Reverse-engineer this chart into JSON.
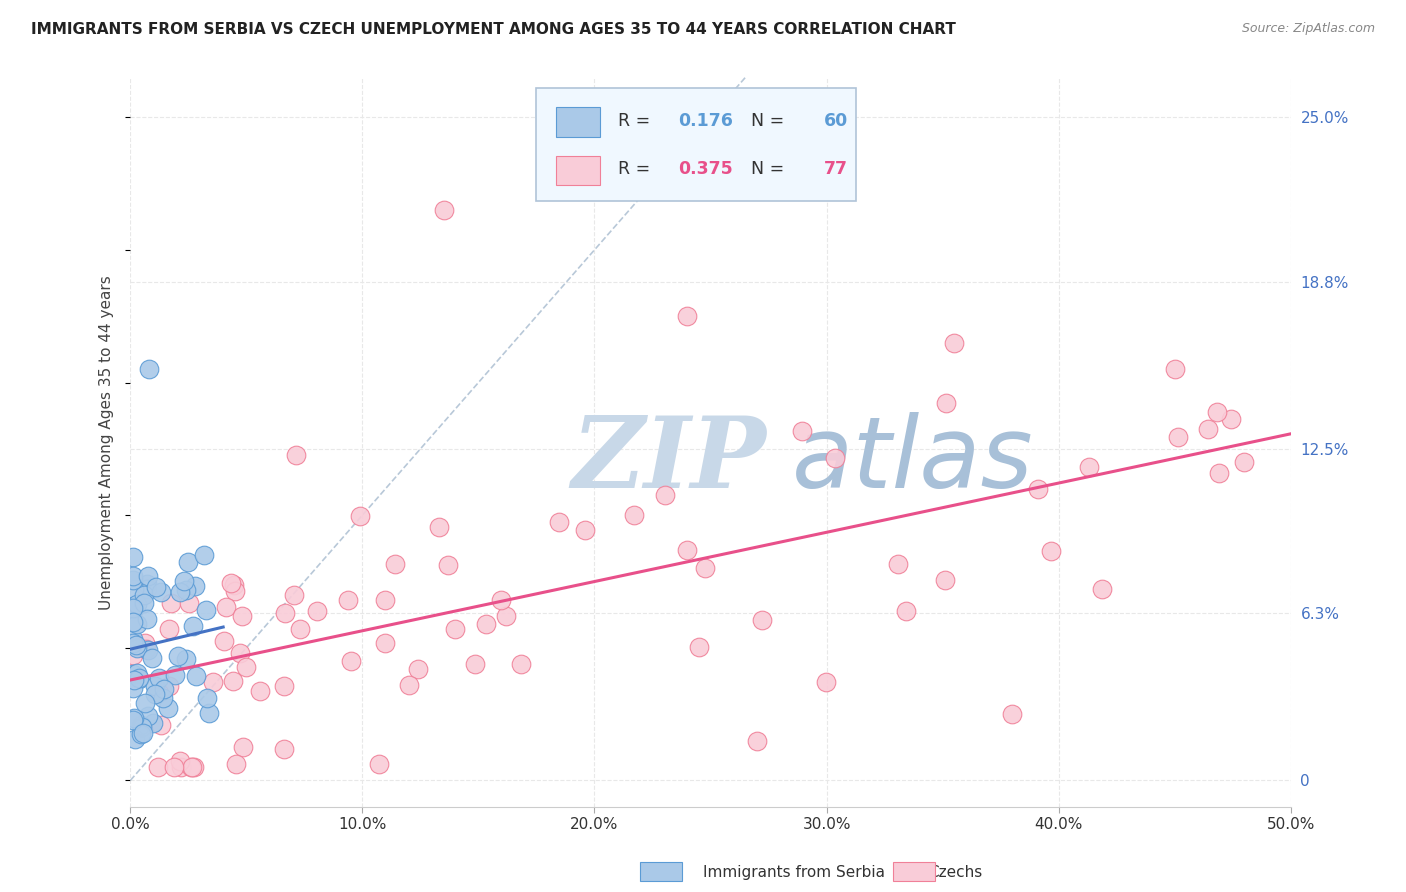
{
  "title": "IMMIGRANTS FROM SERBIA VS CZECH UNEMPLOYMENT AMONG AGES 35 TO 44 YEARS CORRELATION CHART",
  "source": "Source: ZipAtlas.com",
  "ylabel": "Unemployment Among Ages 35 to 44 years",
  "xlim": [
    0.0,
    0.5
  ],
  "ylim": [
    -0.01,
    0.265
  ],
  "xticks": [
    0.0,
    0.1,
    0.2,
    0.3,
    0.4,
    0.5
  ],
  "xticklabels": [
    "0.0%",
    "10.0%",
    "20.0%",
    "30.0%",
    "40.0%",
    "50.0%"
  ],
  "ytick_positions": [
    0.0,
    0.063,
    0.125,
    0.188,
    0.25
  ],
  "yticklabels": [
    "0",
    "6.3%",
    "12.5%",
    "18.8%",
    "25.0%"
  ],
  "serbia_color": "#aac9e8",
  "serbia_edge": "#5b9bd5",
  "czech_color": "#f9ccd8",
  "czech_edge": "#f08098",
  "serbia_R": 0.176,
  "serbia_N": 60,
  "czech_R": 0.375,
  "czech_N": 77,
  "serbia_line_color": "#4472c4",
  "czech_line_color": "#e8508a",
  "diag_line_color": "#b8c8d8",
  "watermark": "ZIPatlas",
  "watermark_color_zip": "#c8d8e8",
  "watermark_color_atlas": "#a0b8d0",
  "grid_color": "#e8e8e8",
  "background_color": "#ffffff",
  "legend_box_color": "#f0f8ff",
  "legend_border_color": "#b0c4d8",
  "serbia_text_color": "#5b9bd5",
  "czech_text_color": "#e8508a",
  "serbia_label_color": "#4472c4",
  "czech_label_color": "#e8508a",
  "note_color": "#888888"
}
